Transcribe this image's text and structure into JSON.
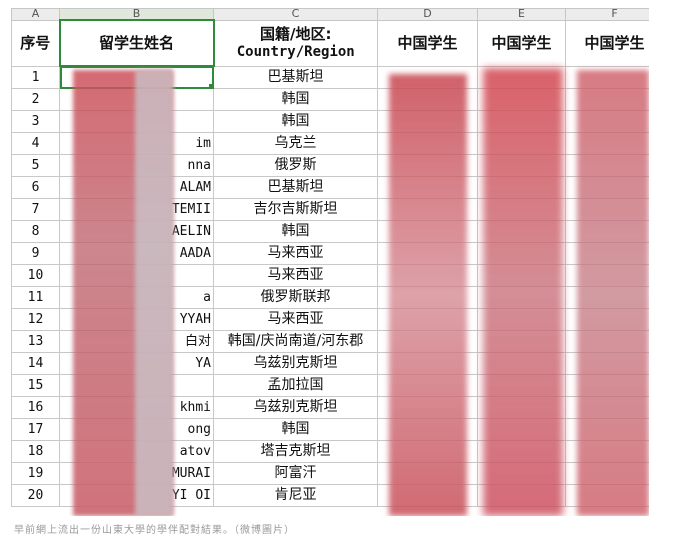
{
  "columns": [
    "A",
    "B",
    "C",
    "D",
    "E",
    "F"
  ],
  "headers": {
    "seq": "序号",
    "name": "留学生姓名",
    "country_line1": "国籍/地区:",
    "country_line2": "Country/Region",
    "cn1": "中国学生",
    "cn2": "中国学生",
    "cn3": "中国学生"
  },
  "rows": [
    {
      "n": "1",
      "name": "",
      "country": "巴基斯坦"
    },
    {
      "n": "2",
      "name": "",
      "country": "韩国"
    },
    {
      "n": "3",
      "name": "",
      "country": "韩国"
    },
    {
      "n": "4",
      "name": "im",
      "country": "乌克兰"
    },
    {
      "n": "5",
      "name": "nna",
      "country": "俄罗斯"
    },
    {
      "n": "6",
      "name": "ALAM",
      "country": "巴基斯坦"
    },
    {
      "n": "7",
      "name": "TEMII",
      "country": "吉尔吉斯斯坦"
    },
    {
      "n": "8",
      "name": "AELIN",
      "country": "韩国"
    },
    {
      "n": "9",
      "name": "AADA",
      "country": "马来西亚"
    },
    {
      "n": "10",
      "name": "",
      "country": "马来西亚"
    },
    {
      "n": "11",
      "name": "a",
      "country": "俄罗斯联邦"
    },
    {
      "n": "12",
      "name": "YYAH",
      "country": "马来西亚"
    },
    {
      "n": "13",
      "name": "白对",
      "country": "韩国/庆尚南道/河东郡"
    },
    {
      "n": "14",
      "name": "YA",
      "country": "乌兹别克斯坦"
    },
    {
      "n": "15",
      "name": "",
      "country": "孟加拉国"
    },
    {
      "n": "16",
      "name": "khmi",
      "country": "乌兹别克斯坦"
    },
    {
      "n": "17",
      "name": "ong",
      "country": "韩国"
    },
    {
      "n": "18",
      "name": "atov",
      "country": "塔吉克斯坦"
    },
    {
      "n": "19",
      "name": "MURAI",
      "country": "阿富汗"
    },
    {
      "n": "20",
      "name": "YI OI",
      "country": "肯尼亚"
    }
  ],
  "caption": "早前網上流出一份山東大學的學伴配對結果。（微博圖片）"
}
